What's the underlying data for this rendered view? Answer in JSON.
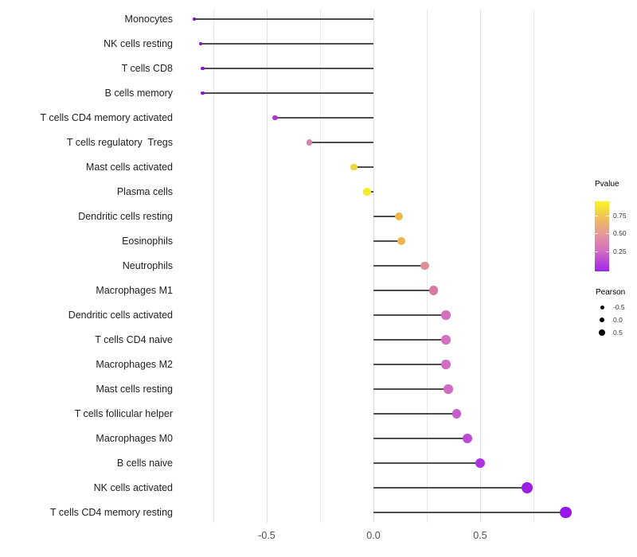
{
  "chart_data": {
    "type": "scatter",
    "subtype": "lollipop",
    "orientation": "horizontal",
    "title": "",
    "xlabel": "",
    "ylabel": "",
    "xlim": [
      -0.92,
      0.99
    ],
    "grid": "vertical gridlines every 0.25, panel background white, no axis lines",
    "x_ticks": [
      "-0.5",
      "0.0",
      "0.5"
    ],
    "x_tick_values": [
      -0.5,
      0.0,
      0.5
    ],
    "rows": [
      {
        "label": "Monocytes",
        "pearson": -0.84,
        "pvalue_approx": 0.001,
        "color": "#7c12b4"
      },
      {
        "label": "NK cells resting",
        "pearson": -0.81,
        "pvalue_approx": 0.005,
        "color": "#8a12c8"
      },
      {
        "label": "T cells CD8",
        "pearson": -0.8,
        "pvalue_approx": 0.006,
        "color": "#8b13ca"
      },
      {
        "label": "B cells memory",
        "pearson": -0.8,
        "pvalue_approx": 0.007,
        "color": "#8d15cc"
      },
      {
        "label": "T cells CD4 memory activated",
        "pearson": -0.46,
        "pvalue_approx": 0.12,
        "color": "#ad36cd"
      },
      {
        "label": "T cells regulatory  Tregs",
        "pearson": -0.3,
        "pvalue_approx": 0.45,
        "color": "#d682ae"
      },
      {
        "label": "Mast cells activated",
        "pearson": -0.09,
        "pvalue_approx": 0.78,
        "color": "#eed63e"
      },
      {
        "label": "Plasma cells",
        "pearson": -0.03,
        "pvalue_approx": 0.88,
        "color": "#f4ee26"
      },
      {
        "label": "Dendritic cells resting",
        "pearson": 0.12,
        "pvalue_approx": 0.7,
        "color": "#edb84d"
      },
      {
        "label": "Eosinophils",
        "pearson": 0.13,
        "pvalue_approx": 0.69,
        "color": "#ecb64e"
      },
      {
        "label": "Neutrophils",
        "pearson": 0.24,
        "pvalue_approx": 0.52,
        "color": "#de8e90"
      },
      {
        "label": "Macrophages M1",
        "pearson": 0.28,
        "pvalue_approx": 0.44,
        "color": "#d67b9f"
      },
      {
        "label": "Dendritic cells activated",
        "pearson": 0.34,
        "pvalue_approx": 0.33,
        "color": "#d371bf"
      },
      {
        "label": "T cells CD4 naive",
        "pearson": 0.34,
        "pvalue_approx": 0.33,
        "color": "#d370c0"
      },
      {
        "label": "Macrophages M2",
        "pearson": 0.34,
        "pvalue_approx": 0.32,
        "color": "#d16dc2"
      },
      {
        "label": "Mast cells resting",
        "pearson": 0.35,
        "pvalue_approx": 0.31,
        "color": "#d06ac3"
      },
      {
        "label": "T cells follicular helper",
        "pearson": 0.39,
        "pvalue_approx": 0.27,
        "color": "#c65fc9"
      },
      {
        "label": "Macrophages M0",
        "pearson": 0.44,
        "pvalue_approx": 0.19,
        "color": "#bb4bd5"
      },
      {
        "label": "B cells naive",
        "pearson": 0.5,
        "pvalue_approx": 0.12,
        "color": "#ac33df"
      },
      {
        "label": "NK cells activated",
        "pearson": 0.72,
        "pvalue_approx": 0.04,
        "color": "#9c1fe6"
      },
      {
        "label": "T cells CD4 memory resting",
        "pearson": 0.9,
        "pvalue_approx": 0.01,
        "color": "#9815ec"
      }
    ],
    "legend_pvalue": {
      "title": "Pvalue",
      "tick_labels": [
        "0.75",
        "0.50",
        "0.25"
      ],
      "gradient_low": "#a125ea",
      "gradient_mid_pink": "#d673bb",
      "gradient_mid": "#e294a0",
      "gradient_amber": "#ecb767",
      "gradient_high": "#fbf51f"
    },
    "legend_pearson": {
      "title": "Pearson",
      "items": [
        {
          "label": "-0.5",
          "size": 5
        },
        {
          "label": "0.0",
          "size": 6.5
        },
        {
          "label": "0.5",
          "size": 8
        }
      ]
    },
    "stem_color": "#4d4d4d",
    "gridline_color": "#e8e8e8"
  }
}
